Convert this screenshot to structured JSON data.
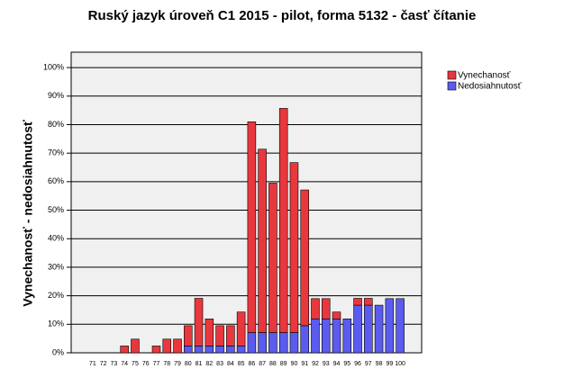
{
  "chart_data": {
    "type": "bar",
    "stacked": true,
    "title": "Ruský jazyk úroveň C1 2015 - pilot, forma 5132 - časť čítanie",
    "y_label": "Vynechanosť - nedosiahnutosť",
    "categories": [
      "71",
      "72",
      "73",
      "74",
      "75",
      "76",
      "77",
      "78",
      "79",
      "80",
      "81",
      "82",
      "83",
      "84",
      "85",
      "86",
      "87",
      "88",
      "89",
      "90",
      "91",
      "92",
      "93",
      "94",
      "95",
      "96",
      "97",
      "98",
      "99",
      "100"
    ],
    "series": [
      {
        "name": "Nedosiahnutosť",
        "color": "#5b5bef",
        "values": [
          0,
          0,
          0,
          0,
          0,
          0,
          0,
          0,
          0,
          2.4,
          2.4,
          2.4,
          2.4,
          2.4,
          2.4,
          7.1,
          7.1,
          7.1,
          7.1,
          7.1,
          9.5,
          11.9,
          11.9,
          11.9,
          11.9,
          16.7,
          16.7,
          16.7,
          19,
          19
        ]
      },
      {
        "name": "Vynechanosť",
        "color": "#e8383d",
        "values": [
          0,
          0,
          0,
          2.4,
          4.8,
          0,
          2.4,
          4.8,
          4.8,
          7.1,
          16.7,
          9.5,
          7.1,
          7.1,
          11.9,
          73.9,
          64.3,
          52.4,
          78.6,
          59.6,
          47.6,
          7.1,
          7.1,
          2.4,
          0,
          2.4,
          2.4,
          0,
          0,
          0
        ]
      }
    ],
    "ylim": [
      0,
      105.4
    ],
    "yticks": [
      {
        "value": 0,
        "label": "0%"
      },
      {
        "value": 10,
        "label": "10%"
      },
      {
        "value": 20,
        "label": "20%"
      },
      {
        "value": 30,
        "label": "30%"
      },
      {
        "value": 40,
        "label": "40%"
      },
      {
        "value": 50,
        "label": "50%"
      },
      {
        "value": 60,
        "label": "60%"
      },
      {
        "value": 70,
        "label": "70%"
      },
      {
        "value": 80,
        "label": "80%"
      },
      {
        "value": 90,
        "label": "90%"
      },
      {
        "value": 100,
        "label": "100%"
      }
    ],
    "grid": true,
    "legend": "right"
  }
}
